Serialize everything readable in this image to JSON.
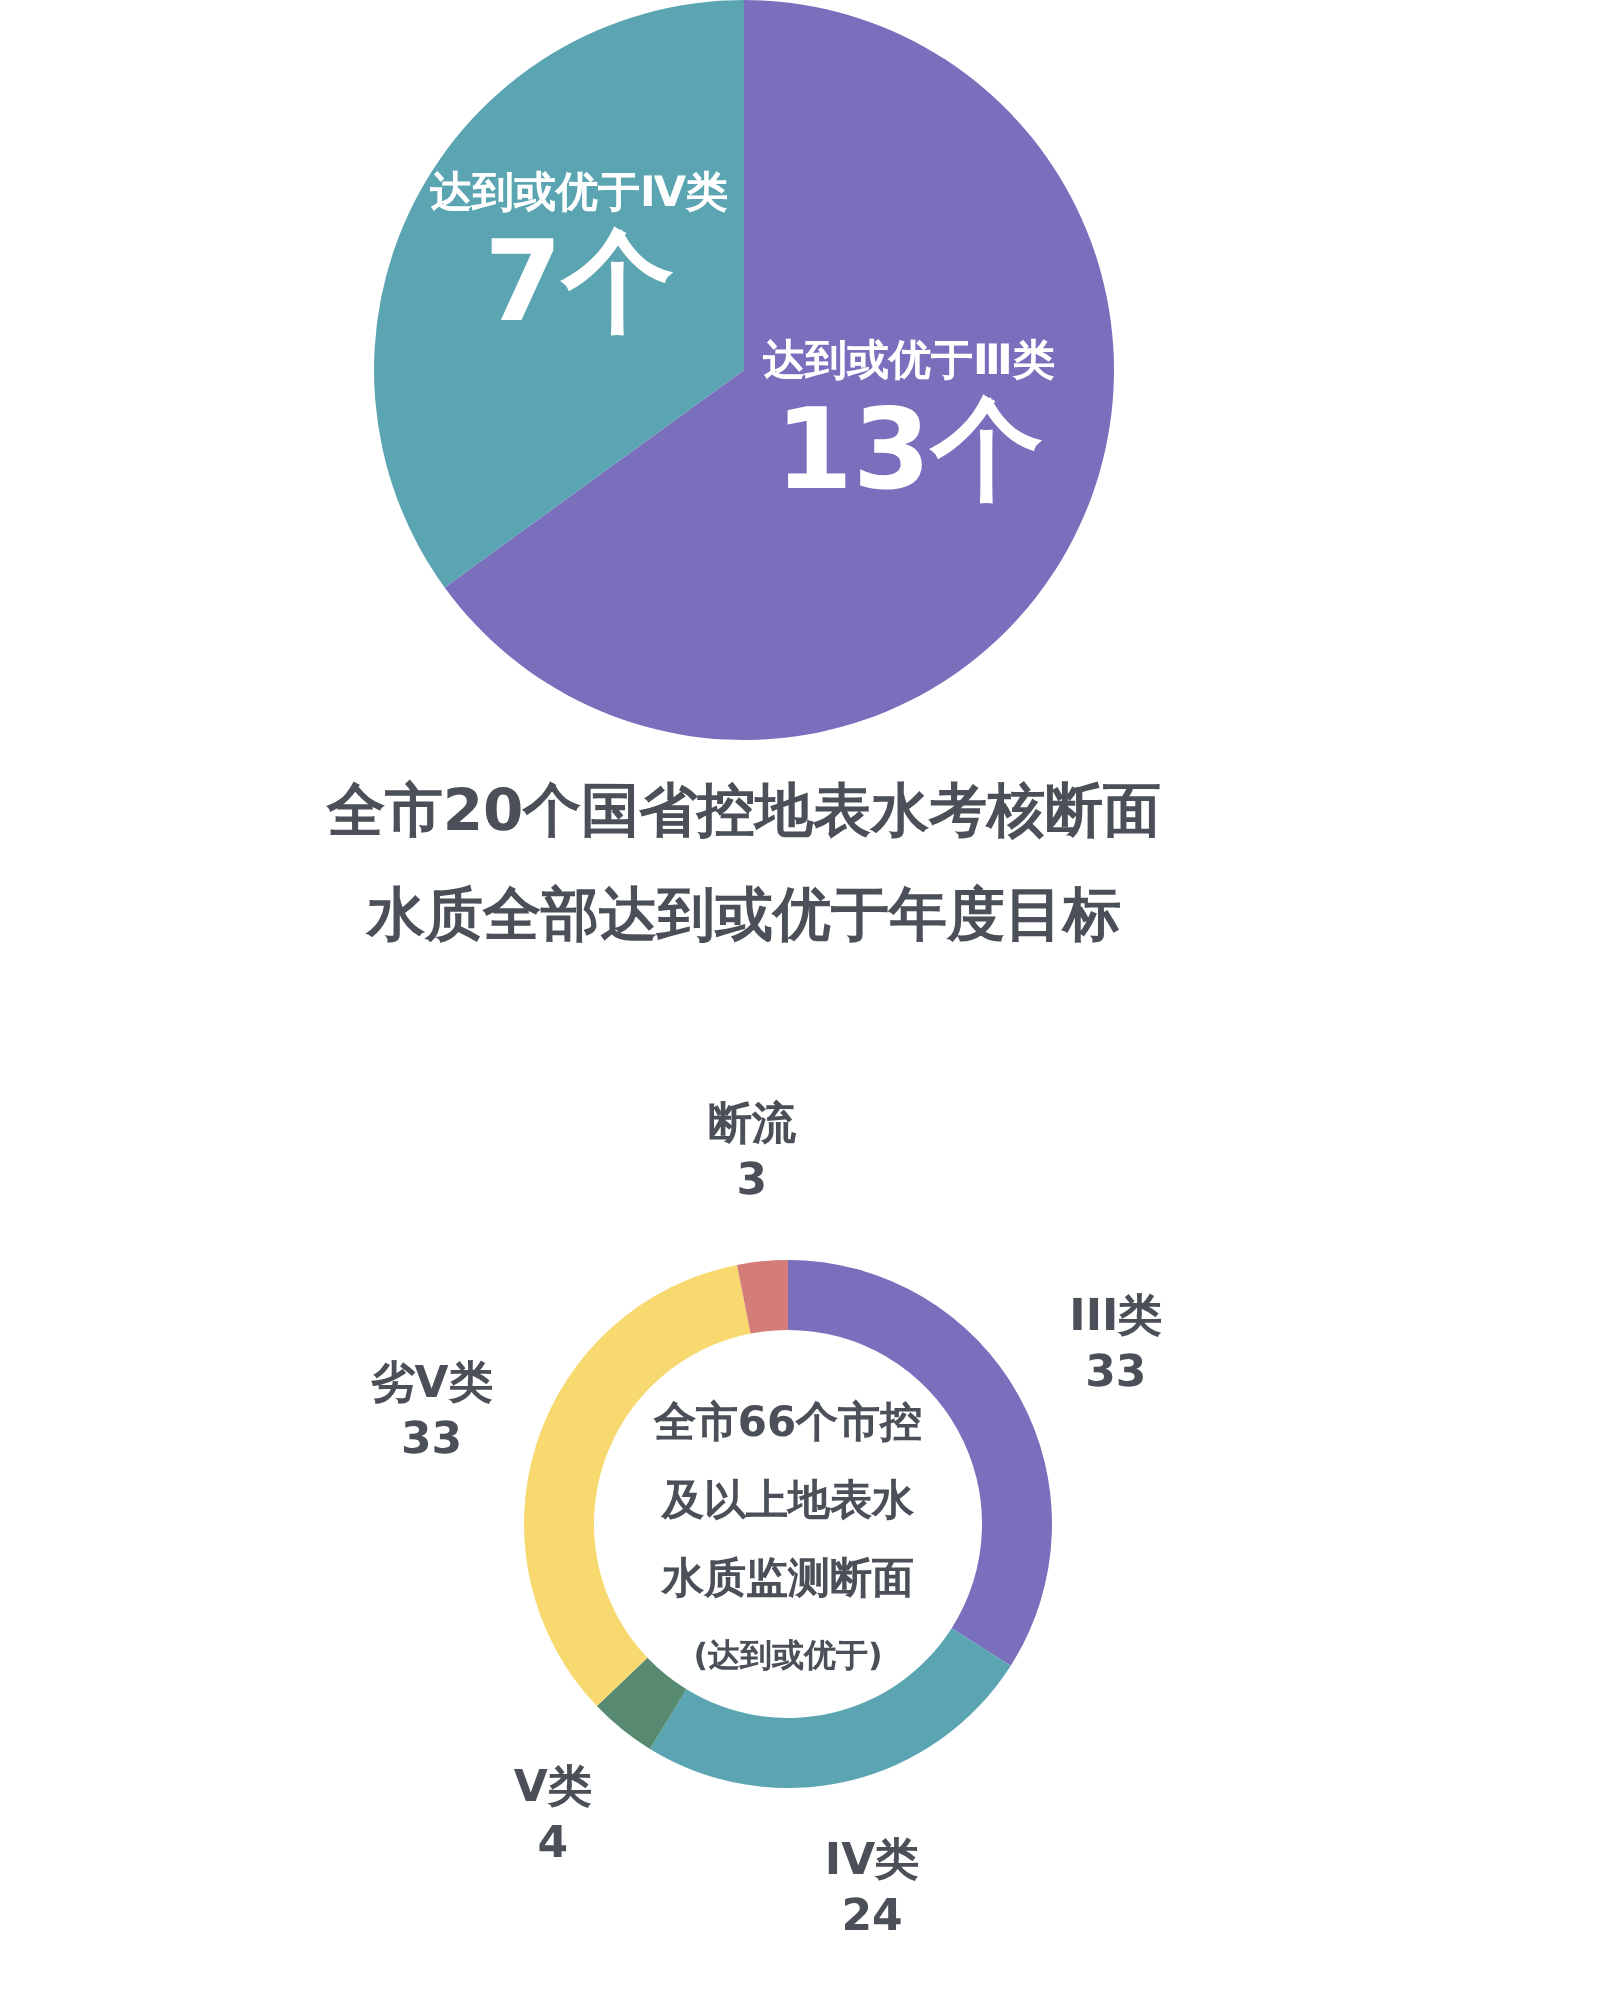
{
  "chart_data": [
    {
      "type": "pie",
      "categories": [
        "达到或优于Ⅲ类",
        "达到或优于Ⅳ类"
      ],
      "values": [
        13,
        7
      ],
      "colors": [
        "#7a6fbd",
        "#5ba5b2"
      ],
      "value_labels": [
        "13个",
        "7个"
      ],
      "annotations": [
        "全市20个国省控地表水考核断面",
        "水质全部达到或优于年度目标"
      ]
    },
    {
      "type": "donut",
      "subtitle": "(达到或优于)",
      "categories": [
        "III类",
        "IV类",
        "V类",
        "劣V类",
        "断流"
      ],
      "values": [
        33,
        24,
        4,
        33,
        3
      ],
      "colors": [
        "#7a6fbd",
        "#5ba5b2",
        "#578a70",
        "#f8d96f",
        "#d37c78"
      ],
      "data_labels": true,
      "annotations": [
        "全市66个市控",
        "及以上地表水",
        "水质监测断面"
      ]
    }
  ]
}
